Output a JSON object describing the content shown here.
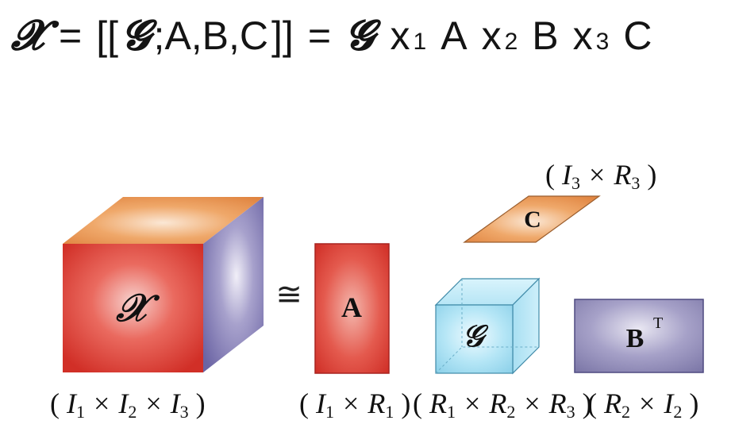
{
  "equation": {
    "X": "𝓧",
    "eq1": "=",
    "lbracket": "[[",
    "G1": "𝓖",
    "args": ";A,B,C",
    "rbracket": "]]",
    "eq2": "=",
    "G2": "𝓖",
    "x1": "x",
    "s1": "1",
    "A": "A",
    "x2": "x",
    "s2": "2",
    "B": "B",
    "x3": "x",
    "s3": "3",
    "C": "C"
  },
  "diagram": {
    "approx_symbol": "≅",
    "tensor_X": {
      "label": "𝒳",
      "dims": {
        "open": "(",
        "I1": "I",
        "s1": "1",
        "t1": "×",
        "I2": "I",
        "s2": "2",
        "t2": "×",
        "I3": "I",
        "s3": "3",
        "close": ")"
      }
    },
    "matrix_A": {
      "label": "A",
      "dims": {
        "open": "(",
        "I": "I",
        "si": "1",
        "t": "×",
        "R": "R",
        "sr": "1",
        "close": ")"
      }
    },
    "core_G": {
      "label": "𝒢",
      "dims": {
        "open": "(",
        "R1": "R",
        "s1": "1",
        "t1": "×",
        "R2": "R",
        "s2": "2",
        "t2": "×",
        "R3": "R",
        "s3": "3",
        "close": ")"
      }
    },
    "matrix_B": {
      "label": "B",
      "sup": "T",
      "dims": {
        "open": "(",
        "R": "R",
        "sr": "2",
        "t": "×",
        "I": "I",
        "si": "2",
        "close": ")"
      }
    },
    "matrix_C": {
      "label": "C",
      "dims": {
        "open": "(",
        "I": "I",
        "si": "3",
        "t": "×",
        "R": "R",
        "sr": "3",
        "close": ")"
      }
    }
  },
  "colors": {
    "red_face": "#e0362f",
    "orange_face": "#e8904a",
    "purple_face": "#7a73b0",
    "cyan_face": "#8fd4ec",
    "bt_face": "#8d88b4"
  }
}
